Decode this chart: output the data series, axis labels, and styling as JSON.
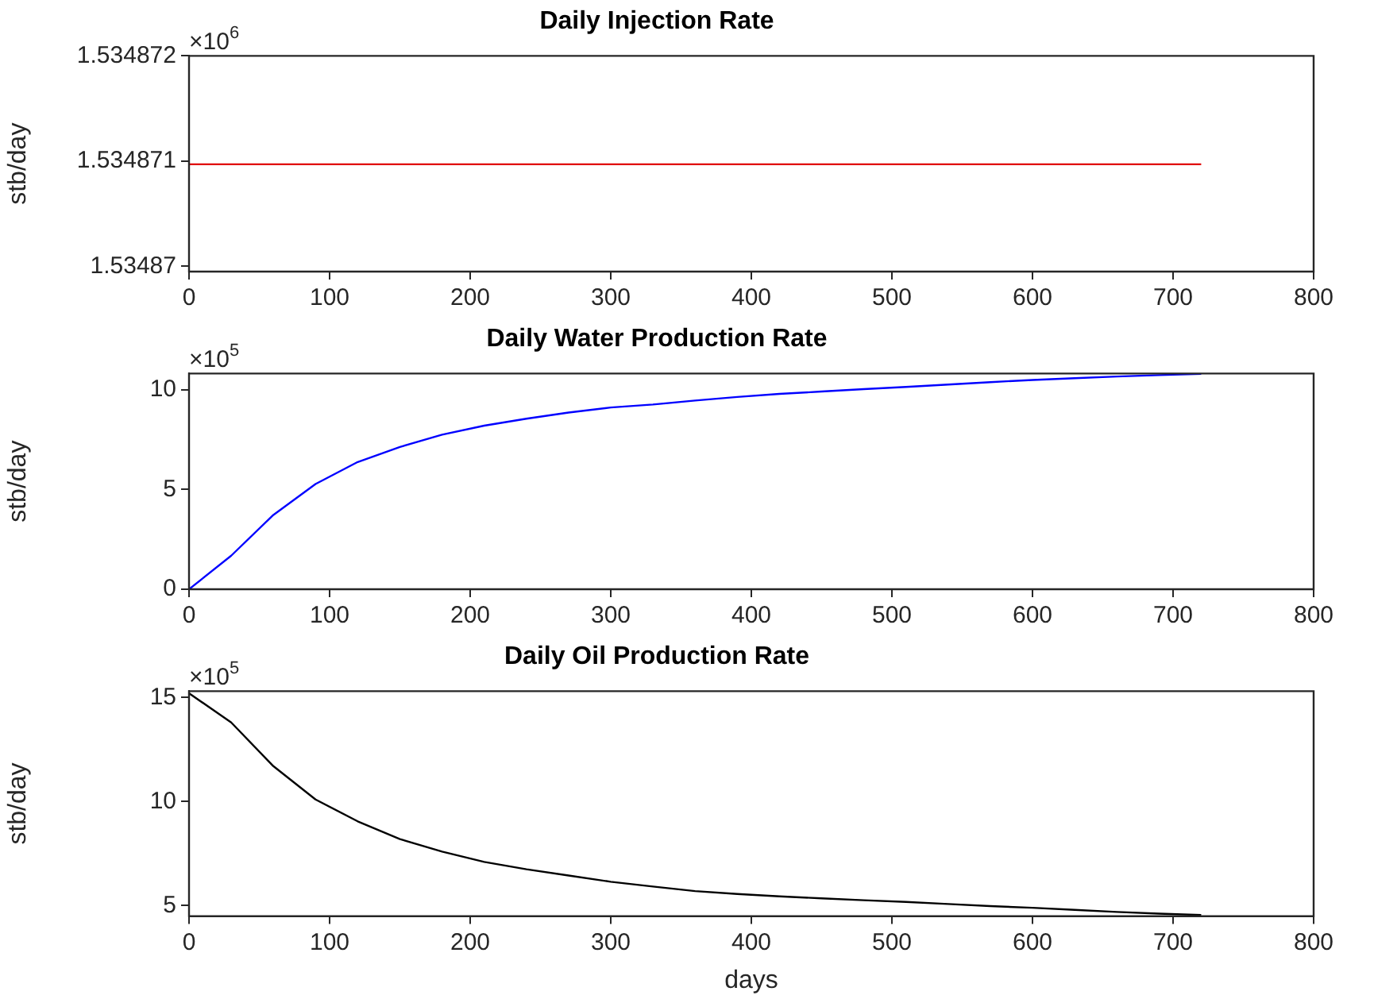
{
  "chart_data": [
    {
      "type": "line",
      "title": "Daily Injection Rate",
      "ylabel": "stb/day",
      "annotations": [
        "×10$^{6}$"
      ],
      "grid": false,
      "legend": false,
      "marker": "none",
      "line_style": "solid",
      "xlim": [
        0,
        800
      ],
      "xticks": [
        0,
        100,
        200,
        300,
        400,
        500,
        600,
        700,
        800
      ],
      "ylim": [
        1.53486995,
        1.534872
      ],
      "yticks": [
        1.53487,
        1.534871,
        1.534872
      ],
      "series": [
        {
          "color": "#e00000",
          "x": [
            0,
            720
          ],
          "values": [
            1.53487097,
            1.53487097
          ]
        }
      ]
    },
    {
      "type": "line",
      "title": "Daily Water Production Rate",
      "ylabel": "stb/day",
      "annotations": [
        "×10$^{5}$"
      ],
      "grid": false,
      "legend": false,
      "marker": "none",
      "line_style": "solid",
      "xlim": [
        0,
        800
      ],
      "xticks": [
        0,
        100,
        200,
        300,
        400,
        500,
        600,
        700,
        800
      ],
      "ylim": [
        0,
        10.8
      ],
      "yticks": [
        0,
        5,
        10
      ],
      "series": [
        {
          "color": "#0000ff",
          "x": [
            0,
            30,
            60,
            90,
            120,
            150,
            180,
            210,
            240,
            270,
            300,
            330,
            360,
            390,
            420,
            450,
            480,
            510,
            540,
            570,
            600,
            630,
            660,
            690,
            720
          ],
          "values": [
            0,
            1.68,
            3.72,
            5.27,
            6.37,
            7.12,
            7.74,
            8.19,
            8.54,
            8.85,
            9.1,
            9.25,
            9.45,
            9.63,
            9.78,
            9.9,
            10.02,
            10.13,
            10.25,
            10.37,
            10.48,
            10.57,
            10.65,
            10.72,
            10.78
          ]
        }
      ]
    },
    {
      "type": "line",
      "title": "Daily Oil Production Rate",
      "xlabel": "days",
      "ylabel": "stb/day",
      "annotations": [
        "×10$^{5}$"
      ],
      "grid": false,
      "legend": false,
      "marker": "none",
      "line_style": "solid",
      "xlim": [
        0,
        800
      ],
      "xticks": [
        0,
        100,
        200,
        300,
        400,
        500,
        600,
        700,
        800
      ],
      "ylim": [
        4.5,
        15.3
      ],
      "yticks": [
        5,
        10,
        15
      ],
      "series": [
        {
          "color": "#000000",
          "x": [
            0,
            30,
            60,
            90,
            120,
            150,
            180,
            210,
            240,
            270,
            300,
            330,
            360,
            390,
            420,
            450,
            480,
            510,
            540,
            570,
            600,
            630,
            660,
            690,
            720
          ],
          "values": [
            15.2,
            13.8,
            11.7,
            10.1,
            9.05,
            8.2,
            7.6,
            7.1,
            6.75,
            6.45,
            6.15,
            5.92,
            5.7,
            5.56,
            5.45,
            5.35,
            5.26,
            5.18,
            5.08,
            4.98,
            4.9,
            4.8,
            4.7,
            4.62,
            4.55
          ]
        }
      ]
    }
  ]
}
